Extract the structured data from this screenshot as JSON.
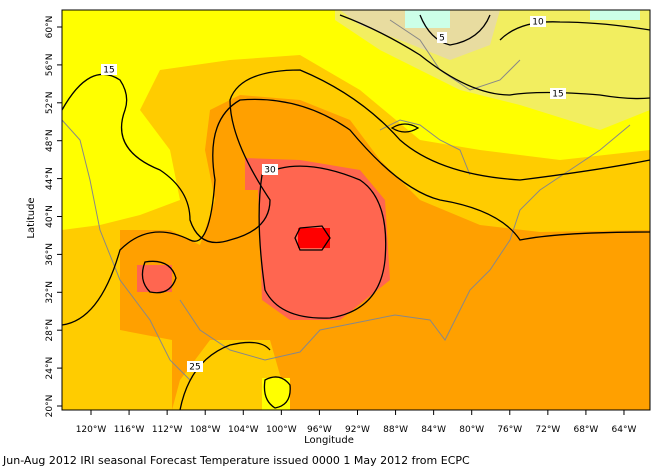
{
  "map": {
    "x_axis": {
      "title": "Longitude",
      "ticks": [
        "120°W",
        "116°W",
        "112°W",
        "108°W",
        "104°W",
        "100°W",
        "96°W",
        "92°W",
        "88°W",
        "84°W",
        "80°W",
        "76°W",
        "72°W",
        "68°W",
        "64°W"
      ]
    },
    "y_axis": {
      "title": "Latitude",
      "ticks": [
        "20°N",
        "24°N",
        "28°N",
        "32°N",
        "36°N",
        "40°N",
        "44°N",
        "48°N",
        "52°N",
        "56°N",
        "60°N"
      ]
    },
    "contour_labels": [
      "15",
      "15",
      "10",
      "5",
      "30",
      "25"
    ],
    "caption": "Jun-Aug 2012 IRI seasonal Forecast Temperature issued 0000 1 May 2012 from ECPC"
  }
}
